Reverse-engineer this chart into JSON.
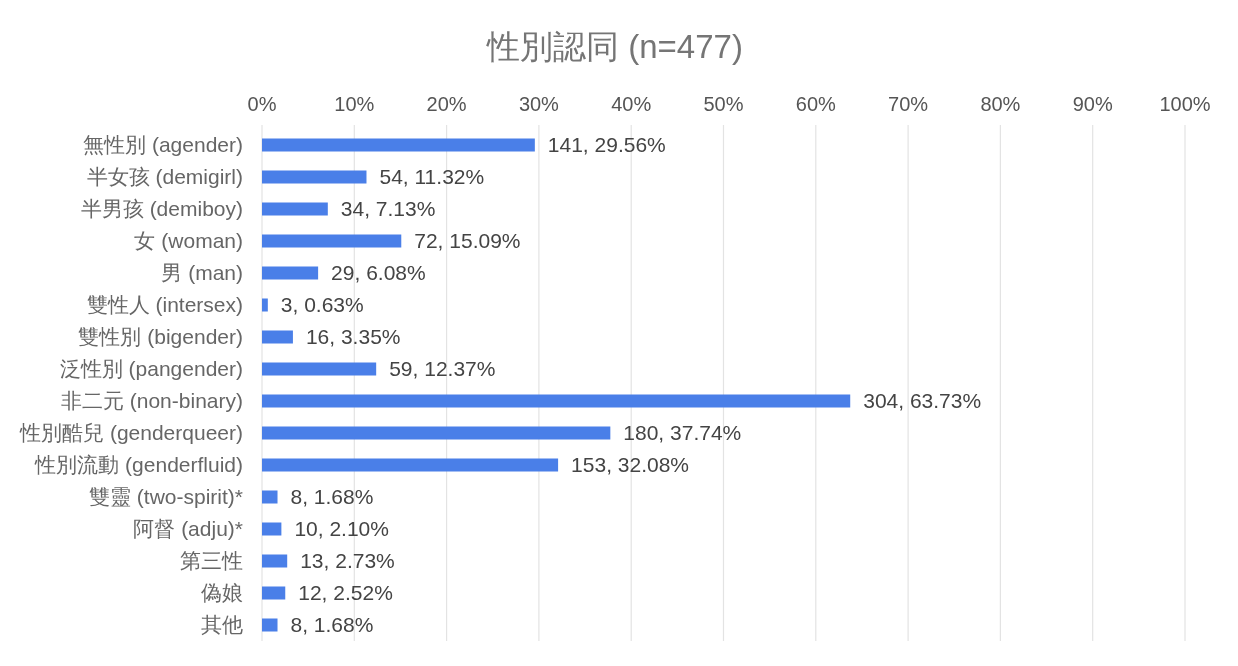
{
  "chart_data": {
    "type": "bar",
    "orientation": "horizontal",
    "title": "性別認同 (n=477)",
    "categories": [
      "無性別 (agender)",
      "半女孩 (demigirl)",
      "半男孩 (demiboy)",
      "女 (woman)",
      "男 (man)",
      "雙性人 (intersex)",
      "雙性別 (bigender)",
      "泛性別 (pangender)",
      "非二元 (non-binary)",
      "性別酷兒 (genderqueer)",
      "性別流動 (genderfluid)",
      "雙靈 (two-spirit)*",
      "阿督 (adju)*",
      "第三性",
      "偽娘",
      "其他"
    ],
    "values": [
      29.56,
      11.32,
      7.13,
      15.09,
      6.08,
      0.63,
      3.35,
      12.37,
      63.73,
      37.74,
      32.08,
      1.68,
      2.1,
      2.73,
      2.52,
      1.68
    ],
    "value_labels": [
      "141, 29.56%",
      "54, 11.32%",
      "34, 7.13%",
      "72, 15.09%",
      "29, 6.08%",
      "3, 0.63%",
      "16, 3.35%",
      "59, 12.37%",
      "304, 63.73%",
      "180, 37.74%",
      "153, 32.08%",
      "8, 1.68%",
      "10, 2.10%",
      "13, 2.73%",
      "12, 2.52%",
      "8, 1.68%"
    ],
    "color": "#4a7fe8",
    "xlim": [
      0,
      100
    ],
    "xticks": [
      {
        "value": 0,
        "label": "0%"
      },
      {
        "value": 10,
        "label": "10%"
      },
      {
        "value": 20,
        "label": "20%"
      },
      {
        "value": 30,
        "label": "30%"
      },
      {
        "value": 40,
        "label": "40%"
      },
      {
        "value": 50,
        "label": "50%"
      },
      {
        "value": 60,
        "label": "60%"
      },
      {
        "value": 70,
        "label": "70%"
      },
      {
        "value": 80,
        "label": "80%"
      },
      {
        "value": 90,
        "label": "90%"
      },
      {
        "value": 100,
        "label": "100%"
      }
    ],
    "grid": "x"
  }
}
